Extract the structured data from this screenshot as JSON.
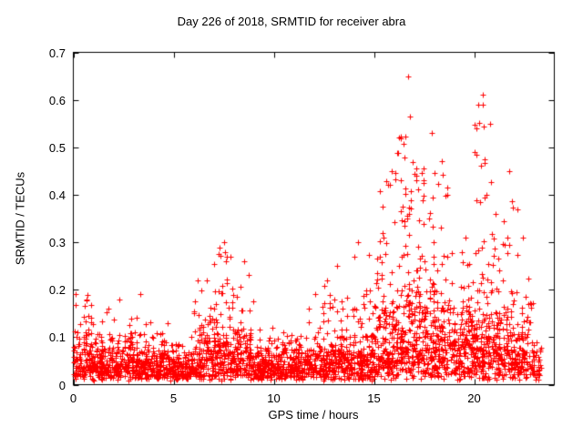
{
  "page": {
    "background_color": "#ffffff",
    "text_color": "#000000"
  },
  "chart_data": {
    "type": "scatter",
    "title": "Day 226 of 2018, SRMTID for receiver abra",
    "xlabel": "GPS time / hours",
    "ylabel": "SRMTID / TECUs",
    "xlim": [
      0,
      24
    ],
    "ylim": [
      0,
      0.7
    ],
    "xtick_values": [
      0,
      5,
      10,
      15,
      20
    ],
    "xtick_labels": [
      "0",
      "5",
      "10",
      "15",
      "20"
    ],
    "ytick_values": [
      0,
      0.1,
      0.2,
      0.3,
      0.4,
      0.5,
      0.6,
      0.7
    ],
    "ytick_labels": [
      "0",
      "0.1",
      "0.2",
      "0.3",
      "0.4",
      "0.5",
      "0.6",
      "0.7"
    ],
    "grid": false,
    "legend": "none",
    "marker": "plus",
    "marker_color": "#ff0000",
    "axis_color": "#000000",
    "seed": 20180226,
    "bins_format": [
      "x_start_hour",
      "x_end_hour",
      "n_baseline_points",
      "baseline_scale_tecu",
      "envelope_max_tecu",
      "n_burst_points",
      "burst_low_tecu",
      "burst_high_tecu"
    ],
    "bins": [
      [
        0,
        1,
        130,
        0.05,
        0.19,
        0,
        0,
        0
      ],
      [
        1,
        2,
        130,
        0.045,
        0.16,
        0,
        0,
        0
      ],
      [
        2,
        3,
        120,
        0.045,
        0.18,
        0,
        0,
        0
      ],
      [
        3,
        4,
        120,
        0.04,
        0.19,
        0,
        0,
        0
      ],
      [
        4,
        5,
        120,
        0.035,
        0.13,
        0,
        0,
        0
      ],
      [
        5,
        6,
        120,
        0.03,
        0.1,
        0,
        0,
        0
      ],
      [
        6,
        7,
        120,
        0.05,
        0.22,
        10,
        0.12,
        0.21
      ],
      [
        7,
        8,
        130,
        0.06,
        0.3,
        25,
        0.12,
        0.29
      ],
      [
        8,
        9,
        120,
        0.05,
        0.26,
        10,
        0.1,
        0.25
      ],
      [
        9,
        10,
        120,
        0.035,
        0.12,
        0,
        0,
        0
      ],
      [
        10,
        11,
        120,
        0.035,
        0.11,
        0,
        0,
        0
      ],
      [
        11,
        12,
        120,
        0.04,
        0.16,
        0,
        0,
        0
      ],
      [
        12,
        13,
        120,
        0.05,
        0.22,
        10,
        0.1,
        0.2
      ],
      [
        13,
        14,
        120,
        0.045,
        0.25,
        6,
        0.1,
        0.22
      ],
      [
        14,
        15,
        120,
        0.055,
        0.3,
        15,
        0.1,
        0.28
      ],
      [
        15,
        16,
        130,
        0.07,
        0.45,
        30,
        0.12,
        0.44
      ],
      [
        16,
        17,
        130,
        0.08,
        0.65,
        45,
        0.15,
        0.64
      ],
      [
        17,
        18,
        130,
        0.08,
        0.53,
        40,
        0.15,
        0.52
      ],
      [
        18,
        19,
        130,
        0.07,
        0.47,
        30,
        0.1,
        0.45
      ],
      [
        19,
        20,
        130,
        0.06,
        0.31,
        25,
        0.08,
        0.3
      ],
      [
        20,
        21,
        130,
        0.07,
        0.61,
        40,
        0.12,
        0.6
      ],
      [
        21,
        22,
        130,
        0.065,
        0.45,
        25,
        0.1,
        0.42
      ],
      [
        22,
        23,
        110,
        0.055,
        0.37,
        12,
        0.1,
        0.36
      ],
      [
        23,
        23.35,
        25,
        0.03,
        0.09,
        0,
        0,
        0
      ]
    ]
  }
}
